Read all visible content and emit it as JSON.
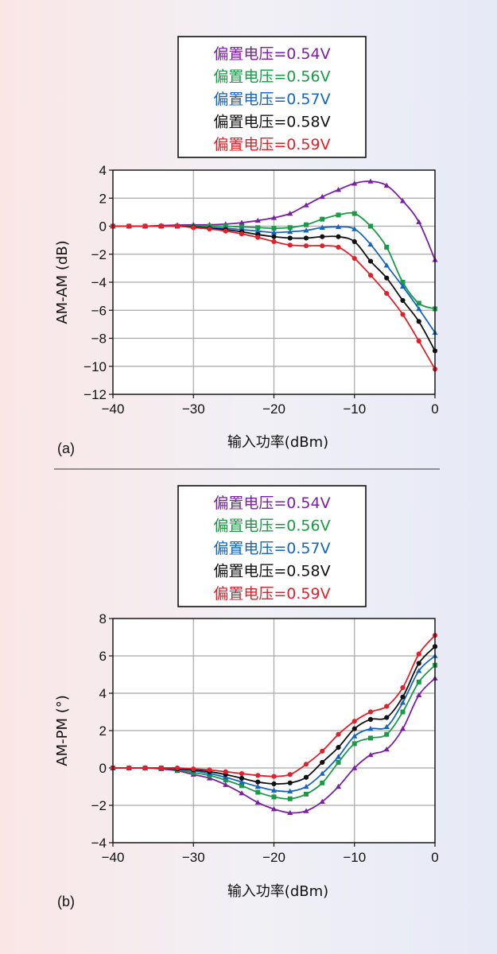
{
  "chart_data": [
    {
      "type": "line",
      "panel_label": "(a)",
      "xlabel": "输入功率(dBm)",
      "ylabel": "AM-AM (dB)",
      "xlim": [
        -40,
        0
      ],
      "ylim": [
        -12,
        4
      ],
      "xticks": [
        -40,
        -30,
        -20,
        -10,
        0
      ],
      "yticks": [
        -12,
        -10,
        -8,
        -6,
        -4,
        -2,
        0,
        2,
        4
      ],
      "xtick_labels": [
        "−40",
        "−30",
        "−20",
        "−10",
        "0"
      ],
      "ytick_labels": [
        "−12",
        "−10",
        "−8",
        "−6",
        "−4",
        "−2",
        "0",
        "2",
        "4"
      ],
      "grid": true,
      "legend_position": "top-center",
      "x": [
        -40,
        -38,
        -36,
        -34,
        -32,
        -30,
        -28,
        -26,
        -24,
        -22,
        -20,
        -18,
        -16,
        -14,
        -12,
        -10,
        -8,
        -6,
        -4,
        -2,
        0
      ],
      "series": [
        {
          "name": "偏置电压=0.54V",
          "color": "#7b1fa2",
          "marker": "triangle",
          "values": [
            0,
            0,
            0,
            0.05,
            0.08,
            0.1,
            0.1,
            0.15,
            0.25,
            0.4,
            0.6,
            0.9,
            1.5,
            2.1,
            2.6,
            3.05,
            3.2,
            2.9,
            1.8,
            0.3,
            -2.4
          ]
        },
        {
          "name": "偏置电压=0.56V",
          "color": "#1a9a45",
          "marker": "square",
          "values": [
            0,
            0,
            0,
            0,
            0,
            0,
            0,
            0,
            -0.05,
            -0.1,
            -0.15,
            -0.1,
            0.1,
            0.5,
            0.8,
            0.9,
            0,
            -1.5,
            -4,
            -5.5,
            -5.9
          ]
        },
        {
          "name": "偏置电压=0.57V",
          "color": "#1565c0",
          "marker": "triangle",
          "values": [
            0,
            0,
            0,
            0,
            0,
            -0.05,
            -0.1,
            -0.15,
            -0.25,
            -0.35,
            -0.45,
            -0.4,
            -0.3,
            -0.1,
            -0.05,
            -0.2,
            -1.3,
            -2.8,
            -4.3,
            -5.9,
            -7.6
          ]
        },
        {
          "name": "偏置电压=0.58V",
          "color": "#111111",
          "marker": "circle",
          "values": [
            0,
            0,
            0,
            0,
            0,
            -0.05,
            -0.15,
            -0.25,
            -0.4,
            -0.6,
            -0.75,
            -0.85,
            -0.85,
            -0.75,
            -0.75,
            -1.1,
            -2.5,
            -3.7,
            -5.3,
            -6.8,
            -8.9
          ]
        },
        {
          "name": "偏置电压=0.59V",
          "color": "#e0202a",
          "marker": "circle",
          "values": [
            0,
            0,
            0,
            0,
            0,
            -0.1,
            -0.2,
            -0.35,
            -0.55,
            -0.8,
            -1.1,
            -1.35,
            -1.4,
            -1.4,
            -1.5,
            -2.3,
            -3.5,
            -4.8,
            -6.3,
            -8.2,
            -10.2
          ]
        }
      ]
    },
    {
      "type": "line",
      "panel_label": "(b)",
      "xlabel": "输入功率(dBm)",
      "ylabel": "AM-PM (°)",
      "xlim": [
        -40,
        0
      ],
      "ylim": [
        -4,
        8
      ],
      "xticks": [
        -40,
        -30,
        -20,
        -10,
        0
      ],
      "yticks": [
        -4,
        -2,
        0,
        2,
        4,
        6,
        8
      ],
      "xtick_labels": [
        "−40",
        "−30",
        "−20",
        "−10",
        "0"
      ],
      "ytick_labels": [
        "−4",
        "−2",
        "0",
        "2",
        "4",
        "6",
        "8"
      ],
      "grid": true,
      "legend_position": "top-center",
      "x": [
        -40,
        -38,
        -36,
        -34,
        -32,
        -30,
        -28,
        -26,
        -24,
        -22,
        -20,
        -18,
        -16,
        -14,
        -12,
        -10,
        -8,
        -6,
        -4,
        -2,
        0
      ],
      "series": [
        {
          "name": "偏置电压=0.54V",
          "color": "#7b1fa2",
          "marker": "triangle",
          "values": [
            0,
            0,
            0,
            -0.05,
            -0.15,
            -0.35,
            -0.55,
            -0.9,
            -1.35,
            -1.85,
            -2.2,
            -2.4,
            -2.3,
            -1.8,
            -1.0,
            0,
            0.7,
            1.0,
            2.1,
            3.9,
            4.8
          ]
        },
        {
          "name": "偏置电压=0.56V",
          "color": "#1a9a45",
          "marker": "square",
          "values": [
            0,
            0,
            0,
            0,
            -0.1,
            -0.25,
            -0.4,
            -0.65,
            -0.95,
            -1.3,
            -1.55,
            -1.65,
            -1.4,
            -0.8,
            0.3,
            1.3,
            1.6,
            1.8,
            3.0,
            4.6,
            5.5
          ]
        },
        {
          "name": "偏置电压=0.57V",
          "color": "#1565c0",
          "marker": "triangle",
          "values": [
            0,
            0,
            0,
            0,
            -0.05,
            -0.15,
            -0.3,
            -0.5,
            -0.75,
            -1.0,
            -1.2,
            -1.25,
            -1.0,
            -0.3,
            0.6,
            1.7,
            2.1,
            2.2,
            3.5,
            5.2,
            6.0
          ]
        },
        {
          "name": "偏置电压=0.58V",
          "color": "#111111",
          "marker": "circle",
          "values": [
            0,
            0,
            0,
            0,
            -0.05,
            -0.1,
            -0.2,
            -0.35,
            -0.55,
            -0.75,
            -0.85,
            -0.8,
            -0.5,
            0.3,
            1.1,
            2.1,
            2.6,
            2.7,
            3.8,
            5.6,
            6.5
          ]
        },
        {
          "name": "偏置电压=0.59V",
          "color": "#e0202a",
          "marker": "circle",
          "values": [
            0,
            0,
            0,
            0,
            0,
            -0.05,
            -0.1,
            -0.2,
            -0.3,
            -0.4,
            -0.45,
            -0.35,
            0.2,
            0.9,
            1.8,
            2.5,
            3.0,
            3.3,
            4.3,
            6.1,
            7.1
          ]
        }
      ]
    }
  ]
}
